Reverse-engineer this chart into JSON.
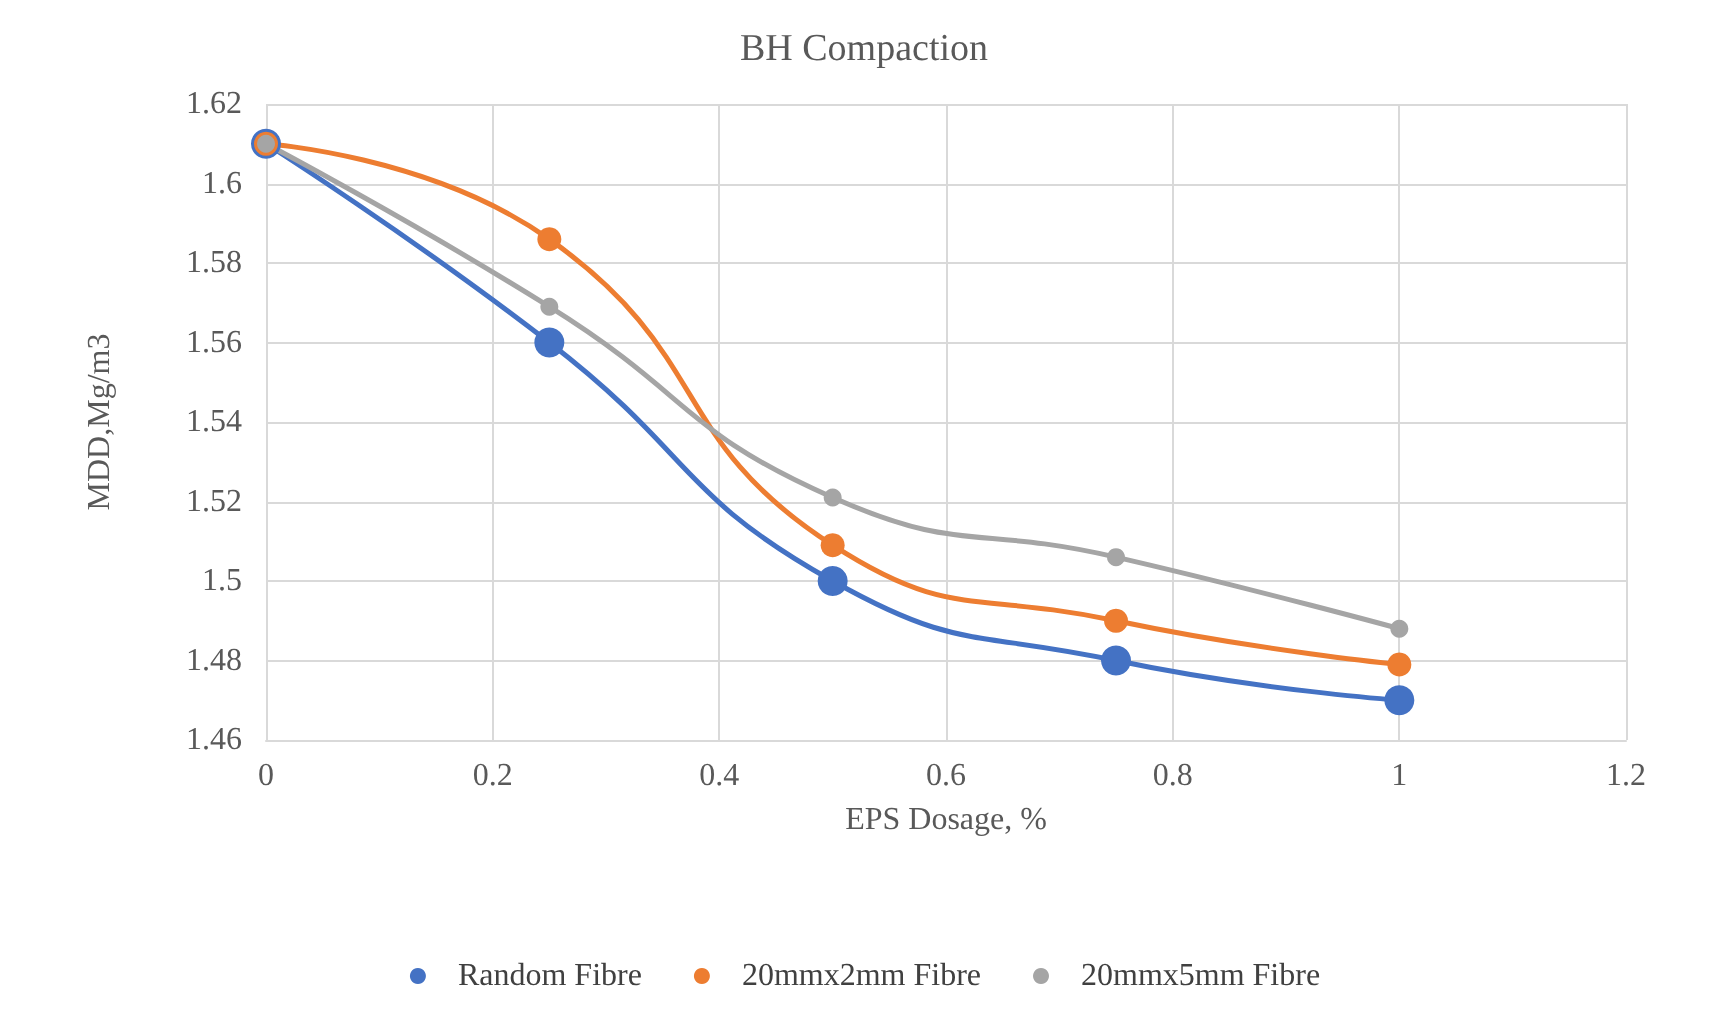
{
  "chart_data": {
    "type": "line",
    "title": "BH Compaction",
    "xlabel": "EPS Dosage, %",
    "ylabel": "MDD,Mg/m3",
    "x": [
      0,
      0.25,
      0.5,
      0.75,
      1
    ],
    "series": [
      {
        "name": "Random Fibre",
        "color": "#4472c4",
        "values": [
          1.61,
          1.56,
          1.5,
          1.48,
          1.47
        ]
      },
      {
        "name": "20mmx2mm Fibre",
        "color": "#ed7d31",
        "values": [
          1.61,
          1.586,
          1.509,
          1.49,
          1.479
        ]
      },
      {
        "name": "20mmx5mm Fibre",
        "color": "#a5a5a5",
        "values": [
          1.61,
          1.569,
          1.521,
          1.506,
          1.488
        ]
      }
    ],
    "xlim": [
      0,
      1.2
    ],
    "xticks": [
      0,
      0.2,
      0.4,
      0.6,
      0.8,
      1,
      1.2
    ],
    "ylim": [
      1.46,
      1.62
    ],
    "yticks": [
      1.46,
      1.48,
      1.5,
      1.52,
      1.54,
      1.56,
      1.58,
      1.6,
      1.62
    ],
    "grid": true,
    "legend": "bottom",
    "marker": "circle",
    "line_style": "solid"
  }
}
